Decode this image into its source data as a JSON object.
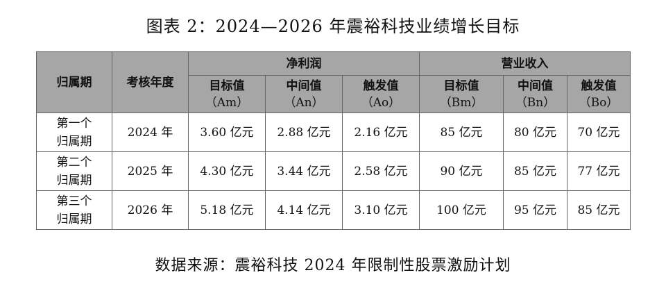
{
  "title": "图表 2：2024—2026 年震裕科技业绩增长目标",
  "table": {
    "col_period": "归属期",
    "col_year": "考核年度",
    "group_net_profit": "净利润",
    "group_revenue": "营业收入",
    "subheaders": [
      {
        "label": "目标值",
        "code": "（Am）"
      },
      {
        "label": "中间值",
        "code": "（An）"
      },
      {
        "label": "触发值",
        "code": "（Ao）"
      },
      {
        "label": "目标值",
        "code": "（Bm）"
      },
      {
        "label": "中间值",
        "code": "（Bn）"
      },
      {
        "label": "触发值",
        "code": "（Bo）"
      }
    ],
    "rows": [
      {
        "period_line1": "第一个",
        "period_line2": "归属期",
        "year": "2024 年",
        "am": "3.60 亿元",
        "an": "2.88 亿元",
        "ao": "2.16 亿元",
        "bm": "85 亿元",
        "bn": "80 亿元",
        "bo": "70 亿元"
      },
      {
        "period_line1": "第二个",
        "period_line2": "归属期",
        "year": "2025 年",
        "am": "4.30 亿元",
        "an": "3.44 亿元",
        "ao": "2.58 亿元",
        "bm": "90 亿元",
        "bn": "85 亿元",
        "bo": "77 亿元"
      },
      {
        "period_line1": "第三个",
        "period_line2": "归属期",
        "year": "2026 年",
        "am": "5.18 亿元",
        "an": "4.14 亿元",
        "ao": "3.10 亿元",
        "bm": "100 亿元",
        "bn": "95 亿元",
        "bo": "85 亿元"
      }
    ]
  },
  "source": "数据来源：震裕科技 2024 年限制性股票激励计划"
}
